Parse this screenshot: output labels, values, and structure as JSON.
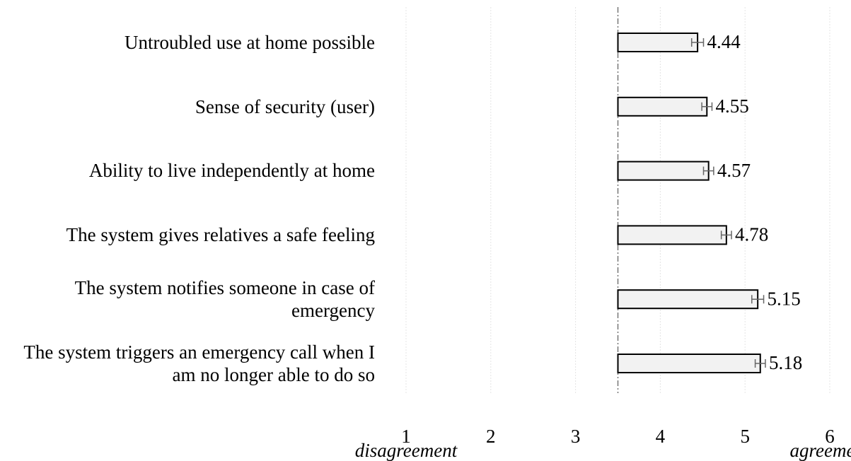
{
  "chart_data": {
    "type": "hbar",
    "categories": [
      "Untroubled use at home possible",
      "Sense of security (user)",
      "Ability to live independently at home",
      "The system gives relatives a safe feeling",
      "The system notifies someone in case of emergency",
      "The system triggers an emergency call when I am no longer able to do so"
    ],
    "values": [
      4.44,
      4.55,
      4.57,
      4.78,
      5.15,
      5.18
    ],
    "errors": [
      0.07,
      0.06,
      0.06,
      0.06,
      0.07,
      0.06
    ],
    "color": "#f2f2f2",
    "reference_line": 3.5,
    "xlim": [
      1,
      6
    ],
    "xticks": [
      1,
      2,
      3,
      4,
      5,
      6
    ],
    "grid": true,
    "xlabel_low": "disagreement",
    "xlabel_high": "agreement"
  }
}
